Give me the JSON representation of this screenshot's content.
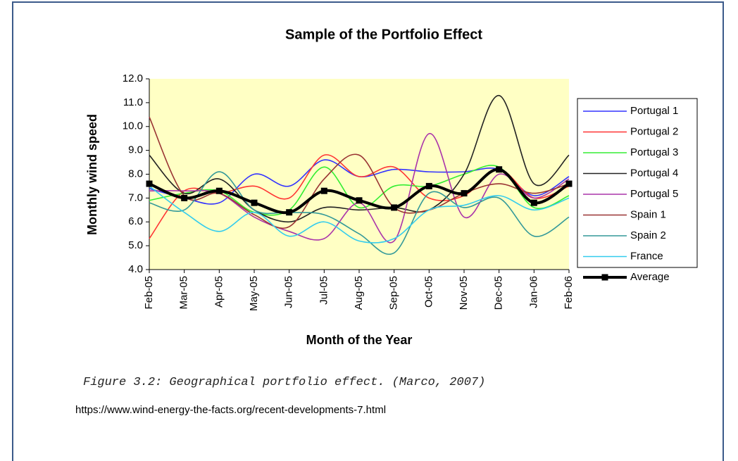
{
  "chart_data": {
    "type": "line",
    "title": "Sample of the Portfolio Effect",
    "x_label": "Month of the Year",
    "y_label": "Monthly wind speed",
    "categories": [
      "Feb-05",
      "Mar-05",
      "Apr-05",
      "May-05",
      "Jun-05",
      "Jul-05",
      "Aug-05",
      "Sep-05",
      "Oct-05",
      "Nov-05",
      "Dec-05",
      "Jan-06",
      "Feb-06"
    ],
    "series": [
      {
        "name": "Portugal 1",
        "color": "#3333ff",
        "values": [
          7.4,
          7.0,
          6.8,
          8.0,
          7.5,
          8.6,
          7.9,
          8.2,
          8.1,
          8.1,
          8.2,
          7.1,
          7.9
        ]
      },
      {
        "name": "Portugal 2",
        "color": "#ff3333",
        "values": [
          5.3,
          7.3,
          7.2,
          7.5,
          7.0,
          8.8,
          7.9,
          8.3,
          7.0,
          7.1,
          8.2,
          7.0,
          7.5
        ]
      },
      {
        "name": "Portugal 3",
        "color": "#33ee33",
        "values": [
          6.9,
          7.2,
          7.3,
          6.4,
          6.5,
          8.3,
          6.6,
          7.5,
          7.5,
          8.0,
          8.3,
          6.6,
          7.1
        ]
      },
      {
        "name": "Portugal 4",
        "color": "#222222",
        "values": [
          8.8,
          7.2,
          7.8,
          6.5,
          6.0,
          6.6,
          6.5,
          6.6,
          6.5,
          8.0,
          11.3,
          7.6,
          8.8
        ]
      },
      {
        "name": "Portugal 5",
        "color": "#aa33aa",
        "values": [
          7.3,
          7.3,
          7.2,
          6.2,
          5.6,
          5.3,
          6.8,
          5.2,
          9.7,
          6.2,
          8.0,
          7.0,
          7.8
        ]
      },
      {
        "name": "Spain 1",
        "color": "#993333",
        "values": [
          10.4,
          7.1,
          7.2,
          6.3,
          5.8,
          7.8,
          8.8,
          6.6,
          6.5,
          7.2,
          7.6,
          7.2,
          7.6
        ]
      },
      {
        "name": "Spain 2",
        "color": "#339999",
        "values": [
          6.8,
          6.5,
          8.1,
          6.5,
          6.4,
          6.3,
          5.5,
          4.7,
          7.2,
          6.6,
          7.0,
          5.4,
          6.2
        ]
      },
      {
        "name": "France",
        "color": "#33ccee",
        "values": [
          7.5,
          6.4,
          5.6,
          6.4,
          5.4,
          6.0,
          5.2,
          5.3,
          6.5,
          6.7,
          7.1,
          6.5,
          7.0
        ]
      },
      {
        "name": "Average",
        "color": "#000000",
        "marker": "square",
        "values": [
          7.6,
          7.0,
          7.3,
          6.8,
          6.4,
          7.3,
          6.9,
          6.6,
          7.5,
          7.2,
          8.2,
          6.8,
          7.6
        ]
      }
    ],
    "ylim": [
      4,
      12
    ],
    "yticks": [
      {
        "value": 4,
        "label": "4.0"
      },
      {
        "value": 5,
        "label": "5.0"
      },
      {
        "value": 6,
        "label": "6.0"
      },
      {
        "value": 7,
        "label": "7.0"
      },
      {
        "value": 8,
        "label": "8.0"
      },
      {
        "value": 9,
        "label": "9.0"
      },
      {
        "value": 10,
        "label": "10.0"
      },
      {
        "value": 11,
        "label": "11.0"
      },
      {
        "value": 12,
        "label": "12.0"
      }
    ],
    "plot_background": "#ffffc4",
    "grid": false,
    "legend": "right"
  },
  "caption": "Figure 3.2: Geographical portfolio effect. (Marco, 2007)",
  "source": "https://www.wind-energy-the-facts.org/recent-developments-7.html"
}
